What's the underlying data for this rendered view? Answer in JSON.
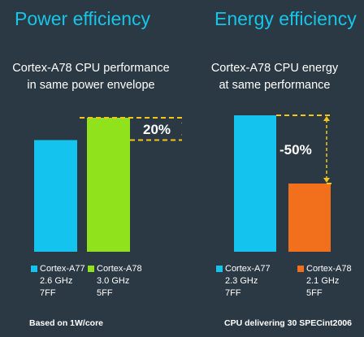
{
  "colors": {
    "background": "#2b3944",
    "heading": "#16c5e8",
    "cortex_a77": "#14c4ee",
    "cortex_a78_perf": "#8fe21c",
    "cortex_a78_energy": "#f2701c",
    "dashed": "#f5c518"
  },
  "left": {
    "heading": "Power efficiency",
    "subtitle_line1": "Cortex-A78 CPU performance",
    "subtitle_line2": "in same power envelope",
    "change_label": "20%",
    "footnote": "Based on 1W/core",
    "legend": [
      {
        "name": "Cortex-A77",
        "freq": "2.6 GHz",
        "node": "7FF"
      },
      {
        "name": "Cortex-A78",
        "freq": "3.0 GHz",
        "node": "5FF"
      }
    ]
  },
  "right": {
    "heading": "Energy efficiency",
    "subtitle_line1": "Cortex-A78 CPU energy",
    "subtitle_line2": "at same performance",
    "change_label": "-50%",
    "footnote": "CPU delivering 30 SPECint2006",
    "legend": [
      {
        "name": "Cortex-A77",
        "freq": "2.3 GHz",
        "node": "7FF"
      },
      {
        "name": "Cortex-A78",
        "freq": "2.1 GHz",
        "node": "5FF"
      }
    ]
  },
  "chart_data": [
    {
      "type": "bar",
      "title": "Power efficiency",
      "subtitle": "Cortex-A78 CPU performance in same power envelope",
      "categories": [
        "Cortex-A77",
        "Cortex-A78"
      ],
      "values": [
        100,
        120
      ],
      "ylim": [
        0,
        120
      ],
      "annotation": "20%",
      "grid": false,
      "legend": "bottom"
    },
    {
      "type": "bar",
      "title": "Energy efficiency",
      "subtitle": "Cortex-A78 CPU energy at same performance",
      "categories": [
        "Cortex-A77",
        "Cortex-A78"
      ],
      "values": [
        100,
        50
      ],
      "ylim": [
        0,
        100
      ],
      "annotation": "-50%",
      "grid": false,
      "legend": "bottom"
    }
  ]
}
